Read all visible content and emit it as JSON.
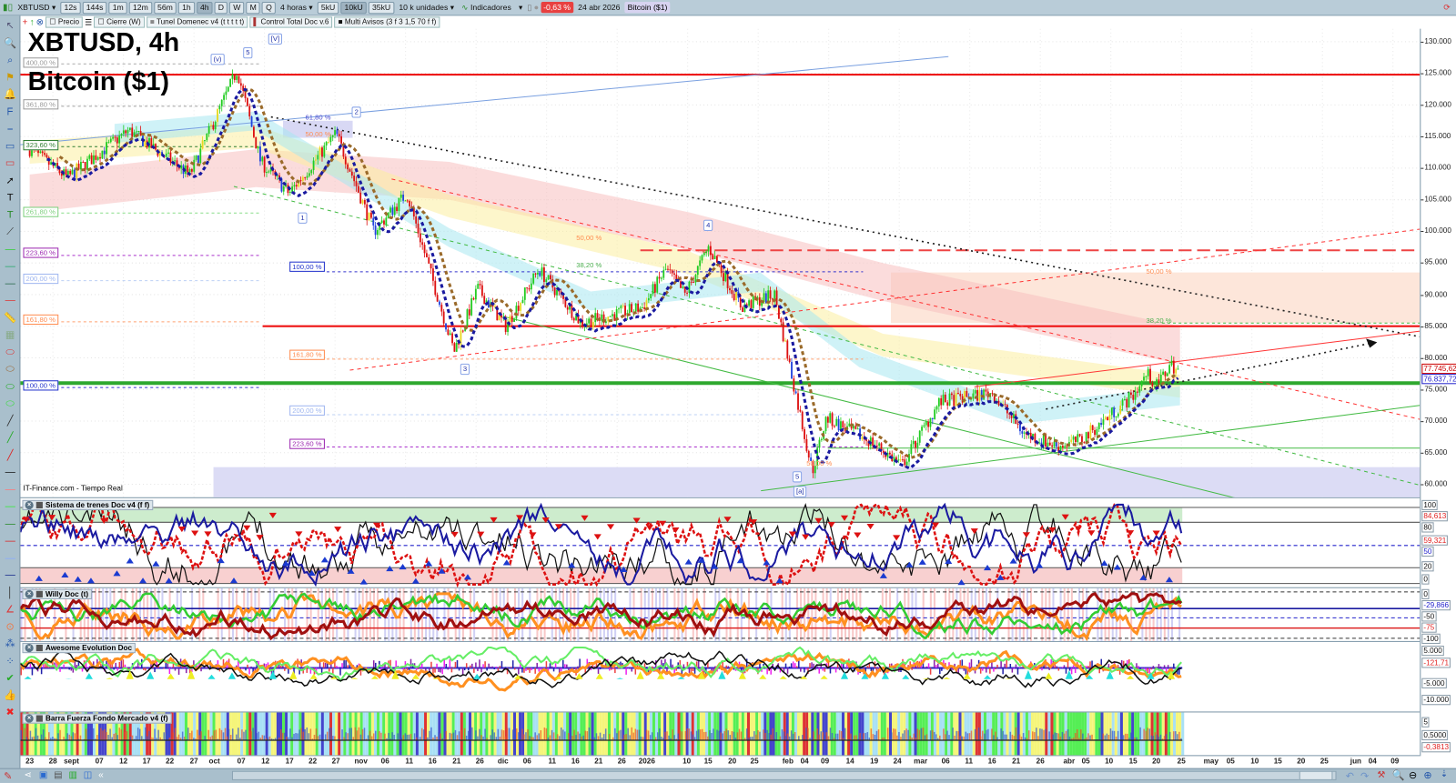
{
  "toolbar": {
    "symbol": "XBTUSD",
    "intervals": [
      "12s",
      "144s",
      "1m",
      "12m",
      "56m",
      "1h",
      "4h",
      "D",
      "W",
      "M",
      "Q"
    ],
    "active_interval": "4h",
    "period_select": "4 horas",
    "units": [
      "5kU",
      "10kU",
      "35kU"
    ],
    "active_unit": "10kU",
    "units_select": "10 k unidades",
    "indicators_label": "Indicadores",
    "change_pct": "-0,63 %",
    "date": "24 abr 2026",
    "instrument": "Bitcoin ($1)"
  },
  "legend": [
    "Precio",
    "Cierre (W)",
    "Tunel Domenec v4 (t t t t t)",
    "Control Total Doc v.6",
    "Multi Avisos (3 f 3 1,5 70 f f)"
  ],
  "chart": {
    "title_line1": "XBTUSD, 4h",
    "title_line2": "Bitcoin ($1)",
    "source": "IT-Finance.com - Tiempo Real",
    "price_ticks": [
      "130.000",
      "125.000",
      "120.000",
      "115.000",
      "110.000",
      "105.000",
      "100.000",
      "95.000",
      "90.000",
      "85.000",
      "80.000",
      "75.000",
      "70.000",
      "65.000",
      "60.000"
    ],
    "price_labels": [
      {
        "text": "77.745,62",
        "color": "#cc0000"
      },
      {
        "text": "76.837,72",
        "color": "#2222cc"
      }
    ],
    "fib_left": [
      {
        "text": "400,00 %",
        "color": "#999999"
      },
      {
        "text": "361,80 %",
        "color": "#999999"
      },
      {
        "text": "323,60 %",
        "color": "#2e7d32"
      },
      {
        "text": "261,80 %",
        "color": "#7ccf7c"
      },
      {
        "text": "223,60 %",
        "color": "#9c27b0"
      },
      {
        "text": "200,00 %",
        "color": "#9fb6f0"
      },
      {
        "text": "161,80 %",
        "color": "#ff8c50"
      },
      {
        "text": "100,00 %",
        "color": "#2233cc"
      }
    ],
    "fib_mid": [
      {
        "text": "61,80 %",
        "color": "#4a4ad0"
      },
      {
        "text": "50,00 %",
        "color": "#ff8c50"
      },
      {
        "text": "100,00 %",
        "color": "#2233cc"
      },
      {
        "text": "161,80 %",
        "color": "#ff8c50"
      },
      {
        "text": "200,00 %",
        "color": "#9fb6f0"
      },
      {
        "text": "223,60 %",
        "color": "#9c27b0"
      }
    ],
    "fib_right": [
      {
        "text": "50,00 %",
        "color": "#ff8c50"
      },
      {
        "text": "38,20 %",
        "color": "#4caf50"
      },
      {
        "text": "50,00 %",
        "color": "#ff8c50"
      },
      {
        "text": "38,20 %",
        "color": "#4caf50"
      },
      {
        "text": "50,00 %",
        "color": "#ff8c50"
      }
    ],
    "waves": [
      "(v)",
      "5",
      "[V]",
      "2",
      "1",
      "3",
      "4",
      "5",
      "[a]"
    ]
  },
  "panels": [
    {
      "title": "Sistema de trenes Doc v4 (f f)",
      "labels": [
        {
          "text": "100",
          "color": "#111"
        },
        {
          "text": "84,613",
          "color": "#e02020"
        },
        {
          "text": "80",
          "color": "#111"
        },
        {
          "text": "59,321",
          "color": "#e02020"
        },
        {
          "text": "50",
          "color": "#2222cc"
        },
        {
          "text": "20",
          "color": "#111"
        },
        {
          "text": "0",
          "color": "#111"
        }
      ]
    },
    {
      "title": "Willy Doc (t)",
      "labels": [
        {
          "text": "0",
          "color": "#111"
        },
        {
          "text": "-29,866",
          "color": "#2222cc"
        },
        {
          "text": "-50",
          "color": "#111"
        },
        {
          "text": "-75",
          "color": "#e02020"
        },
        {
          "text": "-100",
          "color": "#111"
        }
      ]
    },
    {
      "title": "Awesome Evolution Doc",
      "labels": [
        {
          "text": "5.000",
          "color": "#111"
        },
        {
          "text": "-121,71",
          "color": "#e02020"
        },
        {
          "text": "-5.000",
          "color": "#111"
        },
        {
          "text": "-10.000",
          "color": "#111"
        }
      ]
    },
    {
      "title": "Barra Fuerza Fondo Mercado v4 (f)",
      "labels": [
        {
          "text": "5",
          "color": "#111"
        },
        {
          "text": "0,5000",
          "color": "#111"
        },
        {
          "text": "-0,3813",
          "color": "#e02020"
        }
      ]
    }
  ],
  "dates": [
    "23",
    "28",
    "sept",
    "07",
    "12",
    "17",
    "22",
    "27",
    "oct",
    "07",
    "12",
    "17",
    "22",
    "27",
    "nov",
    "06",
    "11",
    "16",
    "21",
    "26",
    "dic",
    "06",
    "11",
    "16",
    "21",
    "26",
    "2026",
    "10",
    "15",
    "20",
    "25",
    "feb",
    "04",
    "09",
    "14",
    "19",
    "24",
    "mar",
    "06",
    "11",
    "16",
    "21",
    "26",
    "abr",
    "05",
    "10",
    "15",
    "20",
    "25",
    "may",
    "05",
    "10",
    "15",
    "20",
    "25",
    "jun",
    "04",
    "09"
  ],
  "chart_data": {
    "type": "candlestick",
    "symbol": "XBTUSD",
    "timeframe": "4h",
    "ylim": [
      58000,
      132000
    ],
    "y_ticks": [
      60000,
      65000,
      70000,
      75000,
      80000,
      85000,
      90000,
      95000,
      100000,
      105000,
      110000,
      115000,
      120000,
      125000,
      130000
    ],
    "x_range": [
      "2025-08-22",
      "2026-06-12"
    ],
    "price_path": [
      [
        "2025-08-23",
        113000
      ],
      [
        "2025-08-31",
        108500
      ],
      [
        "2025-09-13",
        116000
      ],
      [
        "2025-09-26",
        109000
      ],
      [
        "2025-10-06",
        125500
      ],
      [
        "2025-10-11",
        111000
      ],
      [
        "2025-10-17",
        106000
      ],
      [
        "2025-10-27",
        115500
      ],
      [
        "2025-11-04",
        100000
      ],
      [
        "2025-11-11",
        106000
      ],
      [
        "2025-11-21",
        81000
      ],
      [
        "2025-11-26",
        91000
      ],
      [
        "2025-12-02",
        85000
      ],
      [
        "2025-12-09",
        94000
      ],
      [
        "2025-12-18",
        85500
      ],
      [
        "2025-12-31",
        88000
      ],
      [
        "2026-01-05",
        94000
      ],
      [
        "2026-01-09",
        90000
      ],
      [
        "2026-01-14",
        97500
      ],
      [
        "2026-01-21",
        88000
      ],
      [
        "2026-01-28",
        90000
      ],
      [
        "2026-02-05",
        62000
      ],
      [
        "2026-02-08",
        70500
      ],
      [
        "2026-02-18",
        66500
      ],
      [
        "2026-02-24",
        63000
      ],
      [
        "2026-03-04",
        73000
      ],
      [
        "2026-03-15",
        74500
      ],
      [
        "2026-03-22",
        68000
      ],
      [
        "2026-03-29",
        66000
      ],
      [
        "2026-04-03",
        67000
      ],
      [
        "2026-04-14",
        74000
      ],
      [
        "2026-04-17",
        77500
      ],
      [
        "2026-04-19",
        75500
      ],
      [
        "2026-04-22",
        79000
      ],
      [
        "2026-04-24",
        77745.62
      ]
    ],
    "horizontal_levels": [
      {
        "price": 124800,
        "color": "#ee1111"
      },
      {
        "price": 85000,
        "color": "#ee1111"
      },
      {
        "price": 76000,
        "color": "#2ea82e"
      },
      {
        "price": 97000,
        "color": "#ee4444",
        "style": "dashed"
      }
    ],
    "colors": {
      "up": "#22cc22",
      "down": "#dd1111",
      "ma_fast": "#1a1aa0",
      "ma_slow": "#9a6a2a"
    }
  }
}
